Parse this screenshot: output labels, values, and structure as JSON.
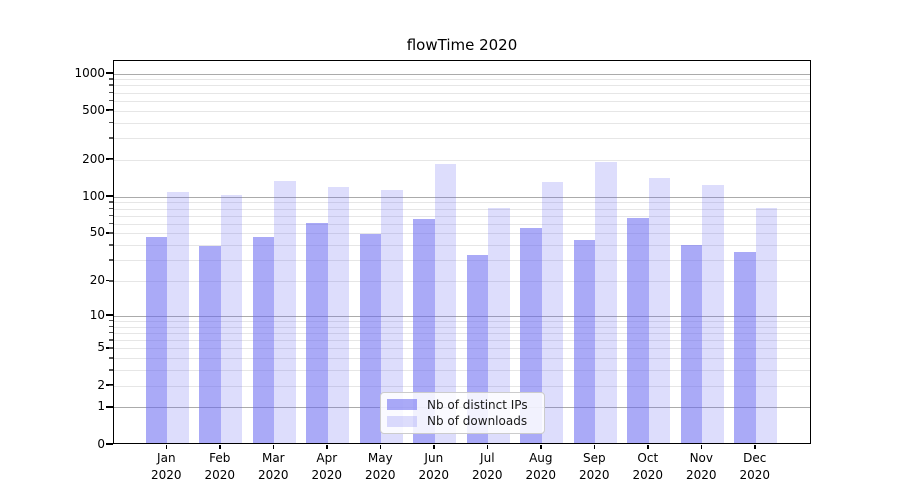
{
  "chart_data": {
    "type": "bar",
    "title": "flowTime 2020",
    "x_months": [
      "Jan",
      "Feb",
      "Mar",
      "Apr",
      "May",
      "Jun",
      "Jul",
      "Aug",
      "Sep",
      "Oct",
      "Nov",
      "Dec"
    ],
    "x_year": "2020",
    "series": [
      {
        "name": "Nb of distinct IPs",
        "color": "rgba(100,100,240,0.55)",
        "values": [
          45,
          38,
          45,
          59,
          48,
          64,
          32,
          54,
          43,
          65,
          39,
          34
        ]
      },
      {
        "name": "Nb of downloads",
        "color": "rgba(100,100,240,0.22)",
        "values": [
          107,
          100,
          130,
          117,
          111,
          180,
          78,
          128,
          187,
          137,
          122,
          78
        ]
      }
    ],
    "y_ticks": [
      0,
      1,
      2,
      5,
      10,
      20,
      50,
      100,
      200,
      500,
      1000
    ],
    "y_scale": "symlog",
    "ylim": [
      0,
      1270
    ],
    "grid": true,
    "legend_position": "inside-bottom-center",
    "colors": {
      "accent_base": "#6464f0",
      "grid_major": "#ababab",
      "grid_minor": "#e6e6e6"
    }
  }
}
